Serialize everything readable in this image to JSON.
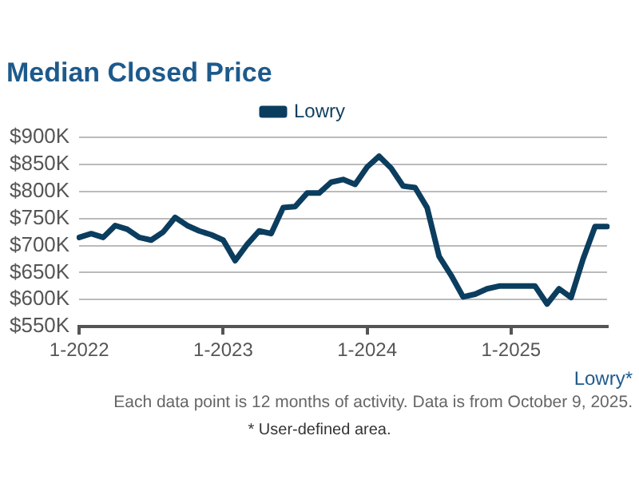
{
  "chart_data": {
    "type": "line",
    "title": "Median Closed Price",
    "subtitle": "Each data point is 12 months of activity. Data is from October 9, 2025.",
    "categories": [
      "1-2022",
      null,
      null,
      null,
      null,
      null,
      null,
      null,
      null,
      null,
      null,
      null,
      "1-2023",
      null,
      null,
      null,
      null,
      null,
      null,
      null,
      null,
      null,
      null,
      null,
      "1-2024",
      null,
      null,
      null,
      null,
      null,
      null,
      null,
      null,
      null,
      null,
      null,
      "1-2025",
      null,
      null,
      null,
      null,
      null,
      null,
      null,
      null
    ],
    "series": [
      {
        "name": "Lowry",
        "color": "#0b3d5e",
        "values": [
          715,
          722,
          715,
          737,
          730,
          715,
          710,
          725,
          752,
          737,
          727,
          720,
          710,
          672,
          702,
          727,
          722,
          770,
          772,
          797,
          797,
          817,
          822,
          813,
          845,
          865,
          843,
          810,
          807,
          770,
          680,
          645,
          605,
          610,
          620,
          625,
          625,
          625,
          625,
          592,
          620,
          604,
          675,
          735,
          735
        ]
      }
    ],
    "ylim": [
      550,
      900
    ],
    "yticks": [
      {
        "value": 550,
        "label": "$550K"
      },
      {
        "value": 600,
        "label": "$600K"
      },
      {
        "value": 650,
        "label": "$650K"
      },
      {
        "value": 700,
        "label": "$700K"
      },
      {
        "value": 750,
        "label": "$750K"
      },
      {
        "value": 800,
        "label": "$800K"
      },
      {
        "value": 850,
        "label": "$850K"
      },
      {
        "value": 900,
        "label": "$900K"
      }
    ],
    "grid": "y",
    "legend": "top",
    "marker": "none",
    "line_style": "solid",
    "annotations": [
      "Lowry*",
      "* User-defined area."
    ]
  }
}
